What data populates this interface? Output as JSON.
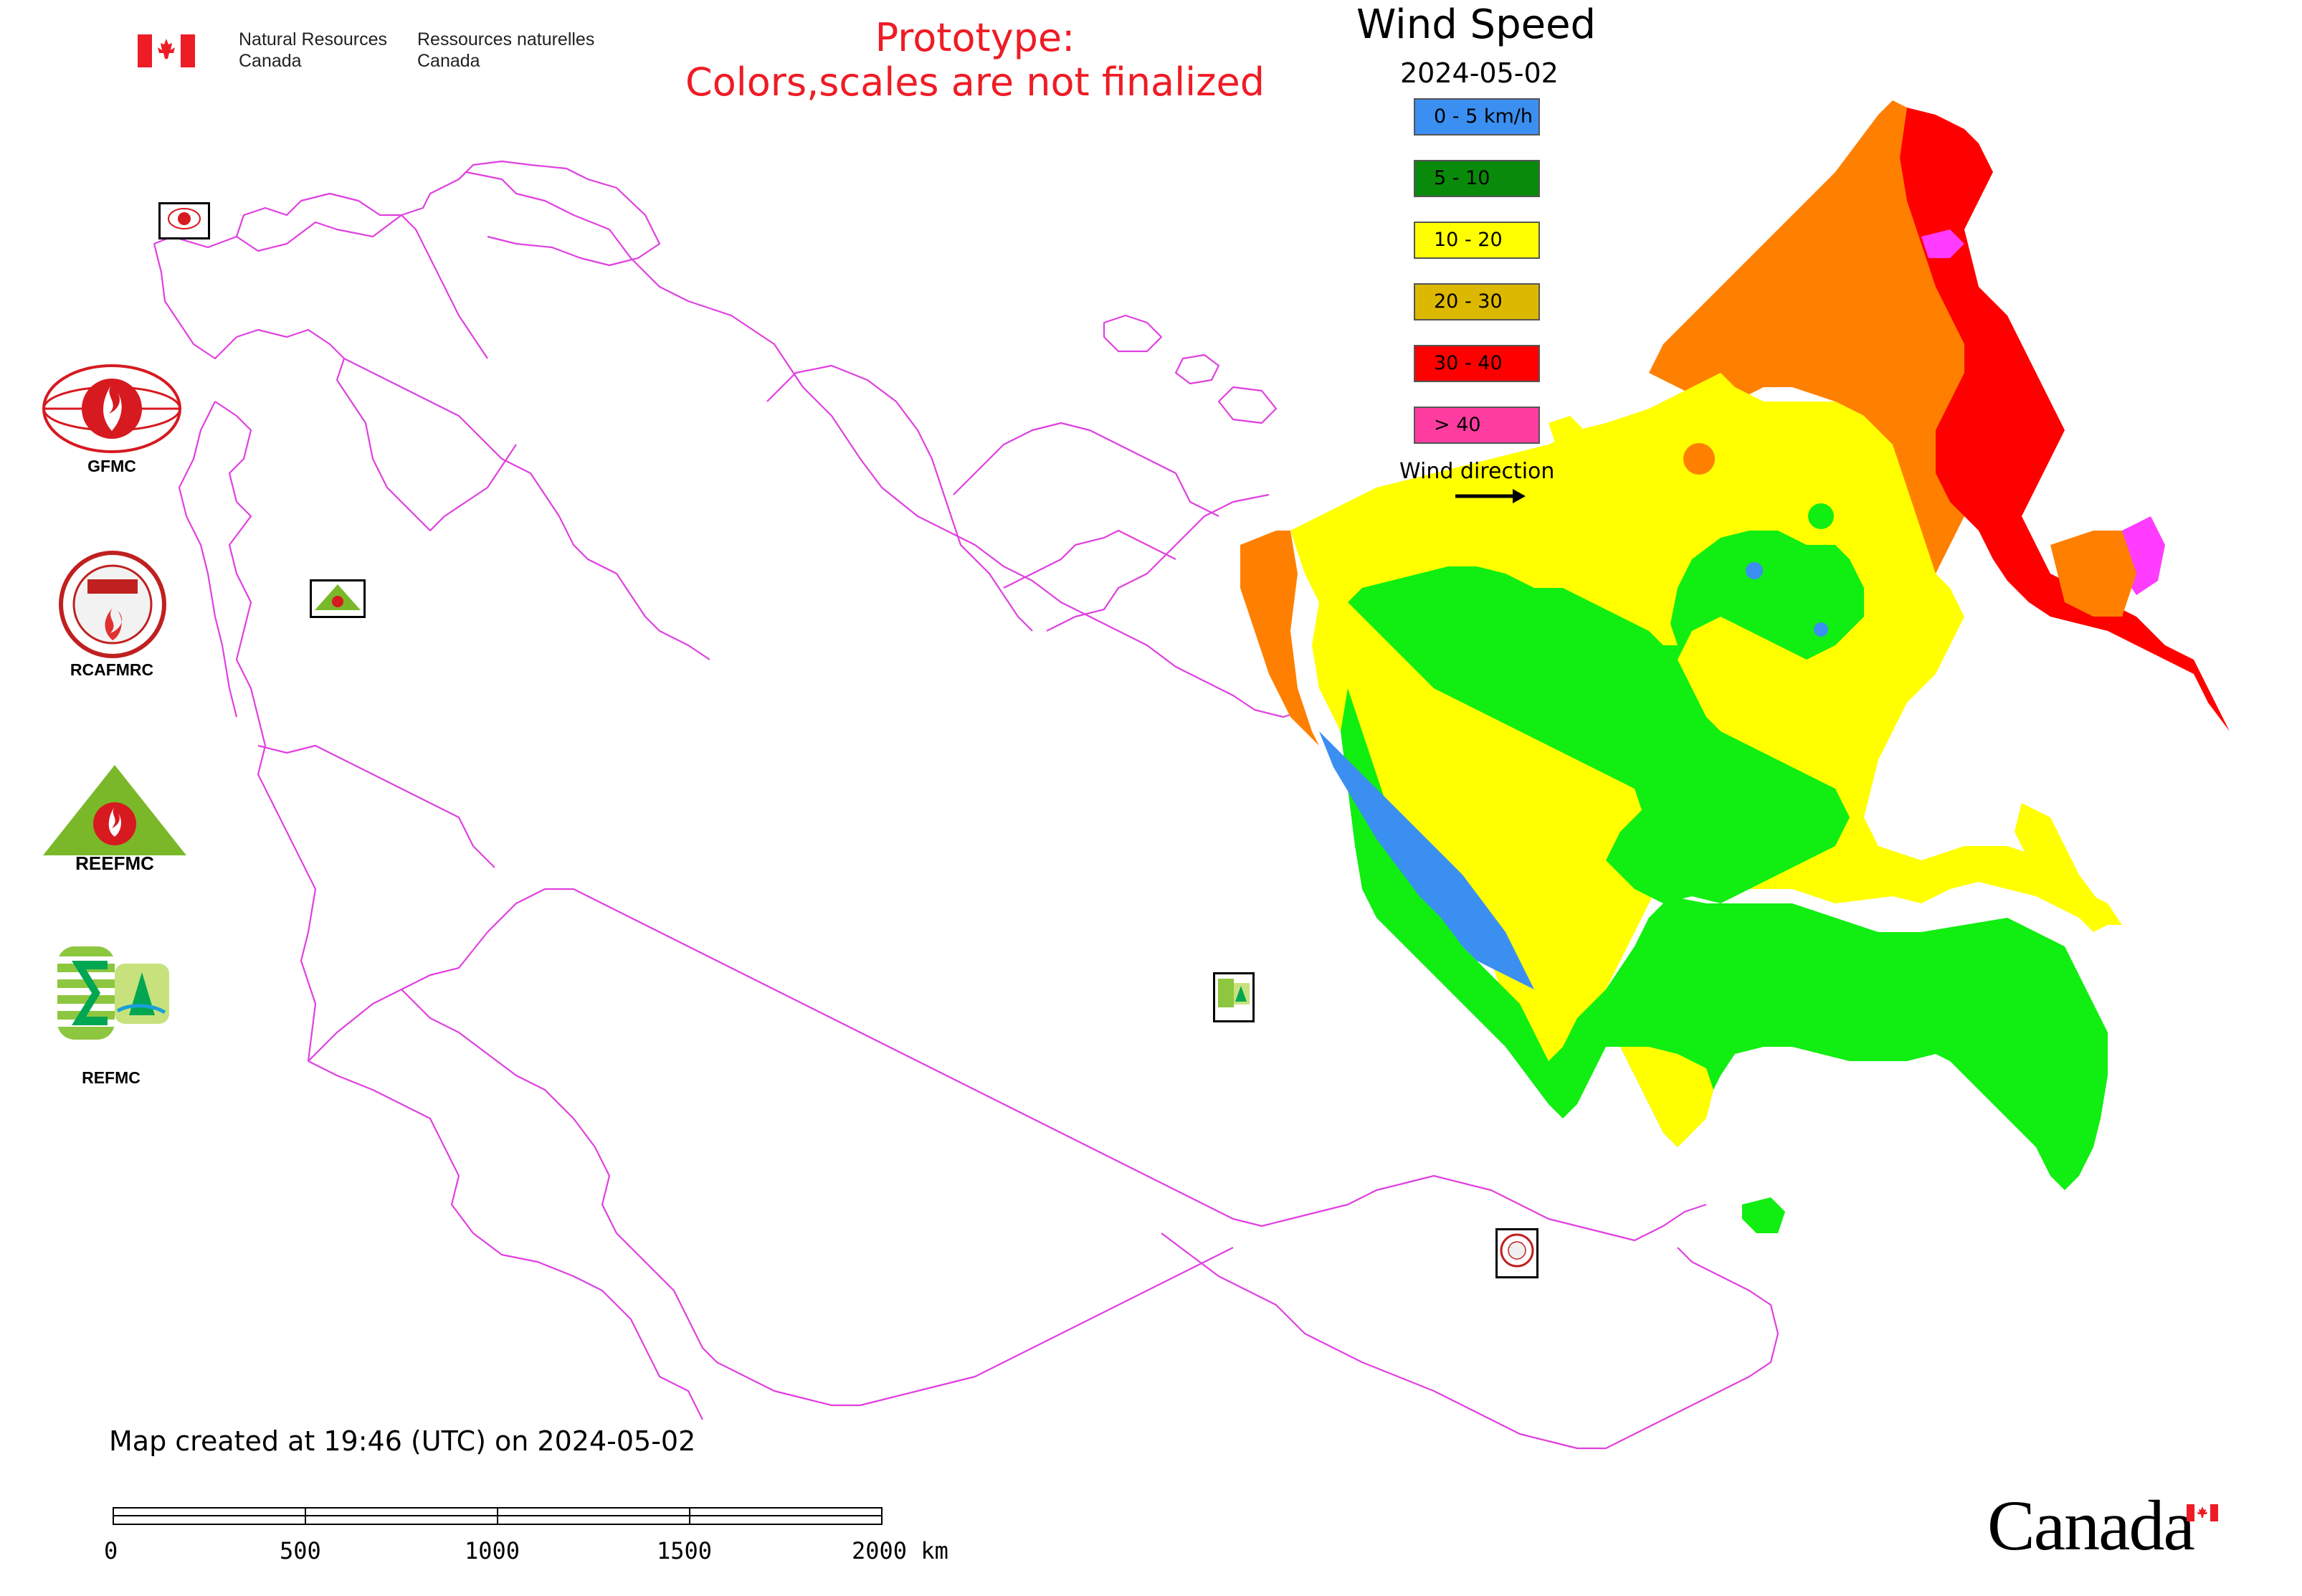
{
  "header": {
    "agency_en_line1": "Natural Resources",
    "agency_en_line2": "Canada",
    "agency_fr_line1": "Ressources naturelles",
    "agency_fr_line2": "Canada",
    "notice_line1": "Prototype:",
    "notice_line2": "Colors,scales are not finalized"
  },
  "legend": {
    "title": "Wind Speed",
    "date": "2024-05-02",
    "classes": [
      {
        "label": "0 - 5 km/h",
        "color": "#3a8ff0"
      },
      {
        "label": "5 - 10",
        "color": "#0a8a0a"
      },
      {
        "label": "10 - 20",
        "color": "#ffff00"
      },
      {
        "label": "20 - 30",
        "color": "#ddb800"
      },
      {
        "label": "30 - 40",
        "color": "#ff0000"
      },
      {
        "label": "> 40",
        "color": "#ff3ca0"
      }
    ],
    "direction_label": "Wind direction"
  },
  "organizations": [
    {
      "label": "GFMC"
    },
    {
      "label": "RCAFMRC"
    },
    {
      "label": ""
    },
    {
      "label": "REFMC"
    }
  ],
  "logos": {
    "reefmc_text": "REEFMC",
    "rcafmrc_ring_text": "RCAFMRC"
  },
  "footer": {
    "created": "Map created at 19:46 (UTC) on 2024-05-02",
    "scale_labels": [
      "0",
      "500",
      "1000",
      "1500",
      "2000 km"
    ],
    "wordmark": "Canada"
  },
  "colors": {
    "border": "#e040e0",
    "accent_red": "#ee1c25"
  }
}
